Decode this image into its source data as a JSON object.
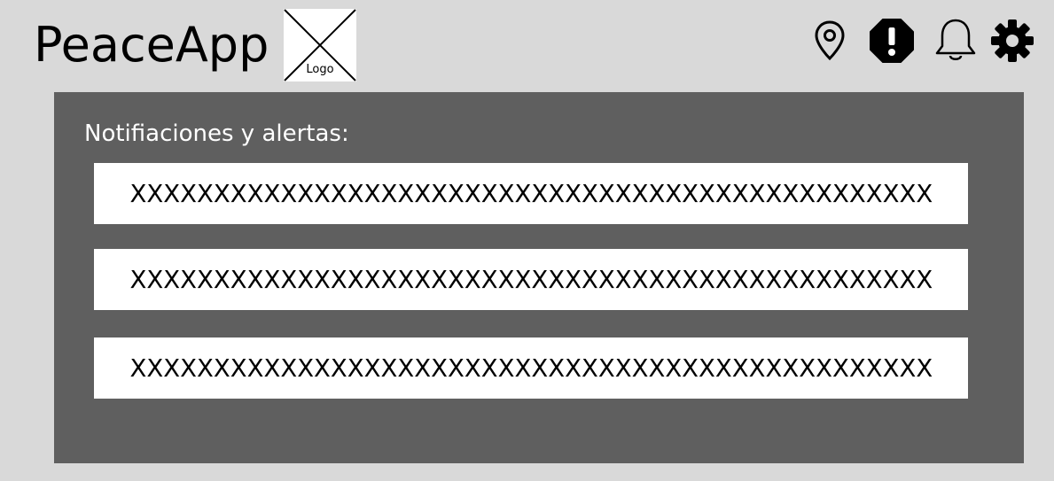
{
  "header": {
    "app_title": "PeaceApp",
    "logo_label": "Logo",
    "icons": [
      "location-pin-icon",
      "alert-octagon-icon",
      "bell-icon",
      "gear-icon"
    ]
  },
  "notifications": {
    "heading": "Notifiaciones y alertas:",
    "items": [
      {
        "text": "XXXXXXXXXXXXXXXXXXXXXXXXXXXXXXXXXXXXXXXXXXXXXXXX"
      },
      {
        "text": "XXXXXXXXXXXXXXXXXXXXXXXXXXXXXXXXXXXXXXXXXXXXXXXX"
      },
      {
        "text": "XXXXXXXXXXXXXXXXXXXXXXXXXXXXXXXXXXXXXXXXXXXXXXXX"
      }
    ]
  },
  "colors": {
    "background": "#d9d9d9",
    "panel": "#5f5f5f",
    "row": "#ffffff",
    "text": "#000000"
  }
}
